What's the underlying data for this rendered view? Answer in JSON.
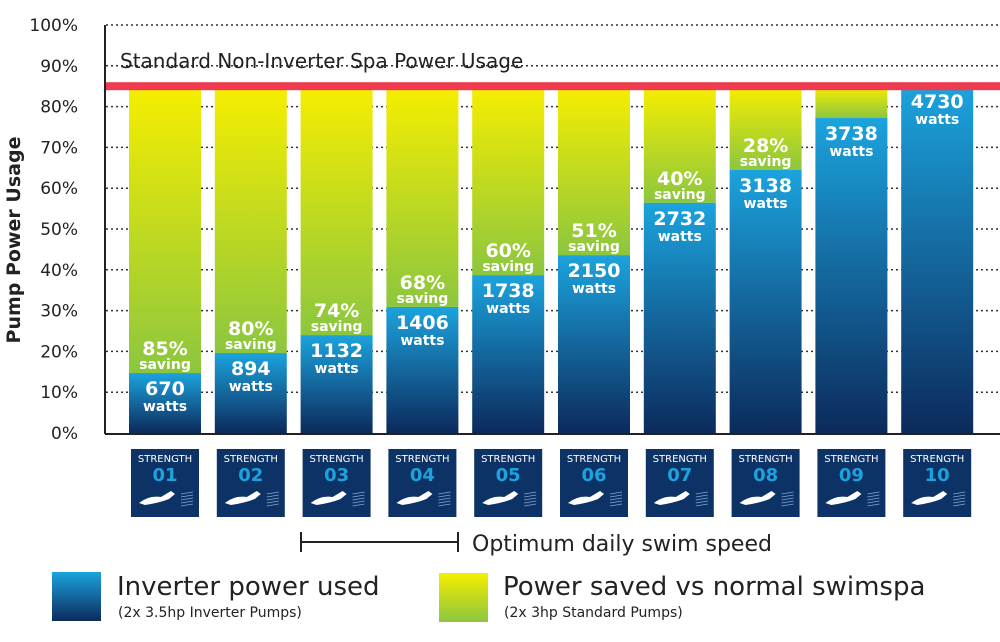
{
  "chart_data": {
    "type": "bar",
    "stacked": true,
    "ylabel": "Pump Power Usage",
    "ylim": [
      0,
      100
    ],
    "yticks": [
      "0%",
      "10%",
      "20%",
      "30%",
      "40%",
      "50%",
      "60%",
      "70%",
      "80%",
      "90%",
      "100%"
    ],
    "grid": "dotted horizontal",
    "reference_line": {
      "label": "Standard Non-Inverter Spa Power Usage",
      "value": 85,
      "color": "#ef3b50"
    },
    "categories": [
      {
        "top": "STRENGTH",
        "num": "01"
      },
      {
        "top": "STRENGTH",
        "num": "02"
      },
      {
        "top": "STRENGTH",
        "num": "03"
      },
      {
        "top": "STRENGTH",
        "num": "04"
      },
      {
        "top": "STRENGTH",
        "num": "05"
      },
      {
        "top": "STRENGTH",
        "num": "06"
      },
      {
        "top": "STRENGTH",
        "num": "07"
      },
      {
        "top": "STRENGTH",
        "num": "08"
      },
      {
        "top": "STRENGTH",
        "num": "09"
      },
      {
        "top": "STRENGTH",
        "num": "10"
      }
    ],
    "series": [
      {
        "name": "Inverter power used",
        "color": "#1a9ad6",
        "values": [
          14.7,
          19.6,
          24,
          30.9,
          38.7,
          43.6,
          56.4,
          64.5,
          77.2,
          85
        ],
        "labels": [
          "670",
          "894",
          "1132",
          "1406",
          "1738",
          "2150",
          "2732",
          "3138",
          "3738",
          "4730"
        ],
        "unit_label": "watts"
      },
      {
        "name": "Power saved vs normal swimspa",
        "color": "#f3ea00",
        "values": [
          70.3,
          65.4,
          61,
          54.1,
          46.3,
          41.4,
          28.6,
          20.5,
          7.8,
          0
        ],
        "labels": [
          "85%",
          "80%",
          "74%",
          "68%",
          "60%",
          "51%",
          "40%",
          "28%",
          "",
          ""
        ],
        "unit_label": "saving"
      }
    ],
    "annotation": {
      "label": "Optimum daily swim speed",
      "from": "03",
      "to": "04"
    },
    "legend": [
      {
        "label": "Inverter power used",
        "sub": "(2x 3.5hp Inverter Pumps)"
      },
      {
        "label": "Power saved vs normal swimspa",
        "sub": "(2x 3hp Standard Pumps)"
      }
    ]
  }
}
